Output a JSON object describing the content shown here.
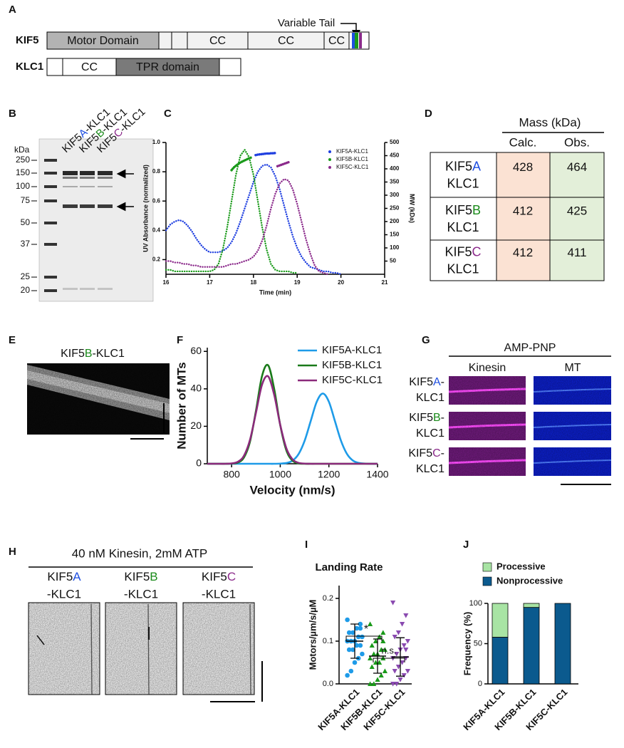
{
  "panel_a": {
    "label": "A",
    "tail_label": "Variable Tail",
    "kif5": {
      "name": "KIF5",
      "domains": [
        "Motor Domain",
        "CC",
        "CC",
        "CC"
      ]
    },
    "klc1": {
      "name": "KLC1",
      "domains": [
        "CC",
        "TPR domain"
      ]
    }
  },
  "panel_b": {
    "label": "B",
    "unit": "kDa",
    "markers": [
      250,
      150,
      100,
      75,
      50,
      37,
      25,
      20
    ],
    "lanes": [
      [
        {
          "text": "KIF5"
        },
        {
          "text": "A",
          "color": "#1f4fe0"
        },
        {
          "text": "-KLC1"
        }
      ],
      [
        {
          "text": "KIF5"
        },
        {
          "text": "B",
          "color": "#1a8a1a"
        },
        {
          "text": "-KLC1"
        }
      ],
      [
        {
          "text": "KIF5"
        },
        {
          "text": "C",
          "color": "#8b2a8b"
        },
        {
          "text": "-KLC1"
        }
      ]
    ]
  },
  "panel_d": {
    "label": "D",
    "header": "Mass (kDa)",
    "columns": [
      "Calc.",
      "Obs."
    ],
    "rows": [
      {
        "name": [
          {
            "text": "KIF5"
          },
          {
            "text": "A",
            "color": "#1f4fe0"
          }
        ],
        "subunit": "KLC1",
        "calc": 428,
        "obs": 464
      },
      {
        "name": [
          {
            "text": "KIF5"
          },
          {
            "text": "B",
            "color": "#1a8a1a"
          }
        ],
        "subunit": "KLC1",
        "calc": 412,
        "obs": 425
      },
      {
        "name": [
          {
            "text": "KIF5"
          },
          {
            "text": "C",
            "color": "#8b2a8b"
          }
        ],
        "subunit": "KLC1",
        "calc": 412,
        "obs": 411
      }
    ]
  },
  "panel_e": {
    "label": "E",
    "title": [
      {
        "text": "KIF5"
      },
      {
        "text": "B",
        "color": "#1a8a1a"
      },
      {
        "text": "-KLC1"
      }
    ]
  },
  "panel_g": {
    "label": "G",
    "condition": "AMP-PNP",
    "channels": [
      {
        "text": "Kinesin",
        "color": "#e030e0"
      },
      {
        "text": "MT",
        "color": "#1a2ee8"
      }
    ],
    "rows": [
      {
        "name": [
          {
            "text": "KIF5"
          },
          {
            "text": "A",
            "color": "#1f4fe0"
          },
          {
            "text": "-"
          }
        ],
        "subunit": "KLC1"
      },
      {
        "name": [
          {
            "text": "KIF5"
          },
          {
            "text": "B",
            "color": "#1a8a1a"
          },
          {
            "text": "-"
          }
        ],
        "subunit": "KLC1"
      },
      {
        "name": [
          {
            "text": "KIF5"
          },
          {
            "text": "C",
            "color": "#8b2a8b"
          },
          {
            "text": "-"
          }
        ],
        "subunit": "KLC1"
      }
    ]
  },
  "panel_h": {
    "label": "H",
    "condition": "40 nM Kinesin, 2mM ATP",
    "lanes": [
      {
        "name": [
          {
            "text": "KIF5"
          },
          {
            "text": "A",
            "color": "#1f4fe0"
          }
        ],
        "subunit": "-KLC1"
      },
      {
        "name": [
          {
            "text": "KIF5"
          },
          {
            "text": "B",
            "color": "#1a8a1a"
          }
        ],
        "subunit": "-KLC1"
      },
      {
        "name": [
          {
            "text": "KIF5"
          },
          {
            "text": "C",
            "color": "#8b2a8b"
          }
        ],
        "subunit": "-KLC1"
      }
    ]
  },
  "chart_data": [
    {
      "type": "line",
      "label": "C",
      "line_style": "dotted",
      "x_label": "Time (min)",
      "y_label": "UV Absorbance (normalized)",
      "y2_label": "MW (kDa)",
      "xlim": [
        16,
        21
      ],
      "xticks": [
        16,
        17,
        18,
        19,
        20,
        21
      ],
      "ylim": [
        0.1,
        1.0
      ],
      "yticks": [
        0.2,
        0.4,
        0.6,
        0.8,
        {
          "value": 1,
          "label": "1.0"
        }
      ],
      "y2lim": [
        0,
        500
      ],
      "y2ticks": [
        50,
        100,
        150,
        200,
        250,
        300,
        350,
        400,
        450,
        500
      ],
      "x": [
        16,
        16.1,
        16.2,
        16.3,
        16.4,
        16.5,
        16.6,
        16.7,
        16.8,
        16.9,
        17,
        17.1,
        17.2,
        17.3,
        17.4,
        17.5,
        17.6,
        17.7,
        17.8,
        17.9,
        18,
        18.1,
        18.2,
        18.3,
        18.4,
        18.5,
        18.6,
        18.7,
        18.8,
        18.9,
        19,
        19.1,
        19.2,
        19.3,
        19.4,
        19.5,
        19.6,
        19.7,
        19.8,
        19.9,
        20
      ],
      "series": [
        {
          "name": "KIF5A-KLC1",
          "color": "#1f3fe0",
          "values": [
            0.4,
            0.44,
            0.46,
            0.47,
            0.46,
            0.43,
            0.39,
            0.34,
            0.3,
            0.27,
            0.25,
            0.25,
            0.25,
            0.26,
            0.28,
            0.32,
            0.38,
            0.46,
            0.55,
            0.64,
            0.73,
            0.8,
            0.84,
            0.85,
            0.83,
            0.77,
            0.68,
            0.57,
            0.46,
            0.36,
            0.28,
            0.22,
            0.18,
            0.15,
            0.14,
            0.13,
            0.12,
            0.12,
            0.11,
            0.11,
            0.1
          ]
        },
        {
          "name": "KIF5B-KLC1",
          "color": "#1a9a1a",
          "values": [
            0.13,
            0.13,
            0.12,
            0.12,
            0.12,
            0.12,
            0.12,
            0.12,
            0.12,
            0.12,
            0.12,
            0.13,
            0.17,
            0.27,
            0.42,
            0.6,
            0.78,
            0.91,
            0.95,
            0.9,
            0.78,
            0.6,
            0.42,
            0.27,
            0.17,
            0.13,
            0.12,
            0.12,
            0.12,
            0.11,
            0.11,
            null,
            null,
            null,
            null,
            null,
            null,
            null,
            null,
            null,
            null
          ]
        },
        {
          "name": "KIF5C-KLC1",
          "color": "#8b2a8b",
          "values": [
            0.19,
            0.19,
            0.18,
            0.18,
            0.17,
            0.17,
            0.16,
            0.16,
            0.15,
            0.15,
            0.15,
            0.15,
            0.15,
            0.15,
            0.16,
            0.17,
            0.17,
            0.18,
            0.19,
            0.2,
            0.22,
            0.26,
            0.33,
            0.43,
            0.55,
            0.65,
            0.72,
            0.75,
            0.74,
            0.68,
            0.58,
            0.46,
            0.34,
            0.24,
            0.16,
            0.12,
            0.11,
            0.1,
            null,
            null,
            null
          ]
        },
        {
          "color": "#1f3fe0",
          "axis": "y2",
          "x": [
            18.05,
            18.1,
            18.15,
            18.2,
            18.25,
            18.3,
            18.35,
            18.4,
            18.45,
            18.5
          ],
          "values": [
            452,
            454,
            455,
            456,
            457,
            458,
            458,
            459,
            459,
            460
          ]
        },
        {
          "color": "#1a9a1a",
          "axis": "y2",
          "x": [
            17.5,
            17.55,
            17.6,
            17.65,
            17.7,
            17.75,
            17.8,
            17.85,
            17.9,
            17.95
          ],
          "values": [
            395,
            405,
            412,
            418,
            424,
            428,
            432,
            436,
            440,
            443
          ]
        },
        {
          "color": "#8b2a8b",
          "axis": "y2",
          "x": [
            18.55,
            18.6,
            18.65,
            18.7,
            18.75,
            18.8
          ],
          "values": [
            410,
            413,
            416,
            419,
            422,
            425
          ]
        }
      ]
    },
    {
      "type": "line",
      "label": "F",
      "smooth": true,
      "x_label": "Velocity (nm/s)",
      "y_label": "Number of MTs",
      "xlim": [
        700,
        1400
      ],
      "xticks": [
        800,
        1000,
        1200,
        1400
      ],
      "ylim": [
        0,
        62
      ],
      "yticks": [
        0,
        20,
        40,
        60
      ],
      "x": [
        700,
        725,
        750,
        775,
        800,
        825,
        850,
        875,
        900,
        925,
        950,
        975,
        1000,
        1025,
        1050,
        1075,
        1100,
        1125,
        1150,
        1175,
        1200,
        1225,
        1250,
        1275,
        1300,
        1325,
        1350,
        1375,
        1400
      ],
      "series": [
        {
          "name": "KIF5A-KLC1",
          "color": "#1e9be8",
          "values": [
            0,
            0,
            0,
            0,
            0,
            0,
            0,
            0,
            0,
            0,
            0,
            0,
            0.1,
            0.4,
            1.6,
            5.1,
            12.2,
            22.7,
            33.1,
            37.5,
            33.1,
            22.7,
            12.2,
            5.1,
            1.6,
            0.4,
            0.1,
            0,
            0
          ]
        },
        {
          "name": "KIF5B-KLC1",
          "color": "#1a7a1a",
          "values": [
            0,
            0,
            0,
            0,
            0.1,
            0.6,
            3.2,
            11.5,
            28.2,
            46.8,
            52.6,
            40.0,
            20.6,
            7.2,
            1.7,
            0.2,
            0,
            0,
            0,
            0,
            0,
            0,
            0,
            0,
            0,
            0,
            0,
            0,
            0
          ]
        },
        {
          "name": "KIF5C-KLC1",
          "color": "#8b2a7b",
          "values": [
            0,
            0,
            0,
            0,
            0.2,
            1.0,
            4.1,
            12.5,
            27.2,
            42.2,
            46.7,
            36.9,
            20.7,
            8.3,
            2.4,
            0.5,
            0.1,
            0,
            0,
            0,
            0,
            0,
            0,
            0,
            0,
            0,
            0,
            0,
            0
          ]
        }
      ]
    },
    {
      "type": "scatter",
      "label": "I",
      "title": "Landing Rate",
      "y_label": "Motors/µm/s/µM",
      "ylim": [
        0,
        0.23
      ],
      "yticks": [
        {
          "value": 0,
          "label": "0.0"
        },
        0.1,
        0.2
      ],
      "categories": [
        "KIF5A-KLC1",
        "KIF5B-KLC1",
        "KIF5C-KLC1"
      ],
      "annotations": [
        "*",
        "n.s."
      ],
      "groups": [
        {
          "color": "#1e9be8",
          "marker": "circle",
          "mean": 0.1,
          "sd": 0.04,
          "values": [
            0.15,
            0.14,
            0.13,
            0.12,
            0.12,
            0.11,
            0.11,
            0.1,
            0.1,
            0.1,
            0.09,
            0.09,
            0.08,
            0.08,
            0.07,
            0.06,
            0.05,
            0.03,
            0.02,
            0.13
          ]
        },
        {
          "color": "#1a9a1a",
          "marker": "triangle",
          "mean": 0.065,
          "sd": 0.04,
          "values": [
            0.14,
            0.12,
            0.11,
            0.1,
            0.09,
            0.08,
            0.08,
            0.07,
            0.07,
            0.06,
            0.06,
            0.05,
            0.05,
            0.04,
            0.03,
            0.02,
            0.01,
            0.0,
            0.0,
            0.1
          ]
        },
        {
          "color": "#8a4ab0",
          "marker": "triangle-down",
          "mean": 0.063,
          "sd": 0.045,
          "values": [
            0.19,
            0.16,
            0.14,
            0.12,
            0.11,
            0.1,
            0.09,
            0.08,
            0.07,
            0.06,
            0.06,
            0.05,
            0.04,
            0.03,
            0.03,
            0.02,
            0.01,
            0.0,
            0.0,
            0.08
          ]
        }
      ]
    },
    {
      "type": "bar",
      "label": "J",
      "stacked": true,
      "y_label": "Frequency (%)",
      "ylim": [
        0,
        100
      ],
      "yticks": [
        0,
        50,
        100
      ],
      "categories": [
        "KIF5A-KLC1",
        "KIF5B-KLC1",
        "KIF5C-KLC1"
      ],
      "series": [
        {
          "name": "Nonprocessive",
          "color": "#0b5a8e",
          "values": [
            58,
            95,
            100
          ]
        },
        {
          "name": "Processive",
          "color": "#a8e4a4",
          "values": [
            42,
            5,
            0
          ]
        }
      ]
    }
  ]
}
